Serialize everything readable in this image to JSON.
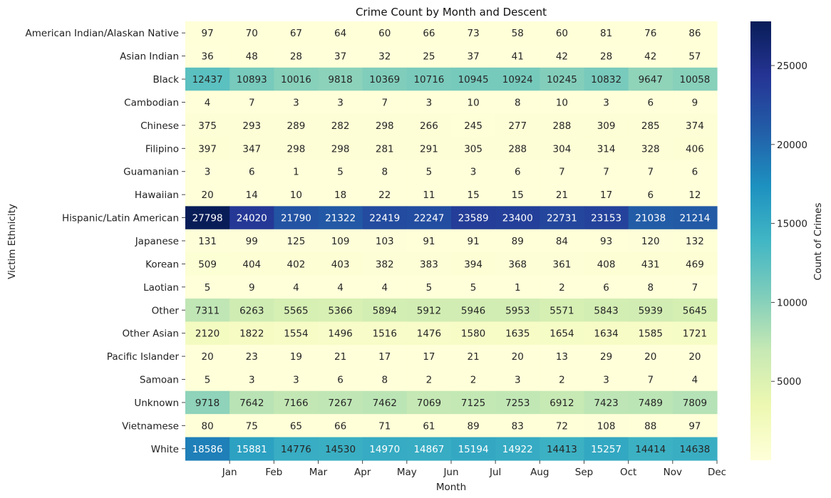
{
  "chart_data": {
    "type": "heatmap",
    "title": "Crime Count by Month and Descent",
    "xlabel": "Month",
    "ylabel": "Victim Ethnicity",
    "colorbar_label": "Count of Crimes",
    "colorbar_ticks": [
      5000,
      10000,
      15000,
      20000,
      25000
    ],
    "color_range": [
      1,
      27798
    ],
    "colormap": [
      "#ffffd9",
      "#edf8b1",
      "#c7e9b4",
      "#7fcdbb",
      "#41b6c4",
      "#1d91c0",
      "#225ea8",
      "#253494",
      "#081d58"
    ],
    "months": [
      "Jan",
      "Feb",
      "Mar",
      "Apr",
      "May",
      "Jun",
      "Jul",
      "Aug",
      "Sep",
      "Oct",
      "Nov",
      "Dec"
    ],
    "ethnicities": [
      "American Indian/Alaskan Native",
      "Asian Indian",
      "Black",
      "Cambodian",
      "Chinese",
      "Filipino",
      "Guamanian",
      "Hawaiian",
      "Hispanic/Latin American",
      "Japanese",
      "Korean",
      "Laotian",
      "Other",
      "Other Asian",
      "Pacific Islander",
      "Samoan",
      "Unknown",
      "Vietnamese",
      "White"
    ],
    "values": [
      [
        97,
        70,
        67,
        64,
        60,
        66,
        73,
        58,
        60,
        81,
        76,
        86
      ],
      [
        36,
        48,
        28,
        37,
        32,
        25,
        37,
        41,
        42,
        28,
        42,
        57
      ],
      [
        12437,
        10893,
        10016,
        9818,
        10369,
        10716,
        10945,
        10924,
        10245,
        10832,
        9647,
        10058
      ],
      [
        4,
        7,
        3,
        3,
        7,
        3,
        10,
        8,
        10,
        3,
        6,
        9
      ],
      [
        375,
        293,
        289,
        282,
        298,
        266,
        245,
        277,
        288,
        309,
        285,
        374
      ],
      [
        397,
        347,
        298,
        298,
        281,
        291,
        305,
        288,
        304,
        314,
        328,
        406
      ],
      [
        3,
        6,
        1,
        5,
        8,
        5,
        3,
        6,
        7,
        7,
        7,
        6
      ],
      [
        20,
        14,
        10,
        18,
        22,
        11,
        15,
        15,
        21,
        17,
        6,
        12
      ],
      [
        27798,
        24020,
        21790,
        21322,
        22419,
        22247,
        23589,
        23400,
        22731,
        23153,
        21038,
        21214
      ],
      [
        131,
        99,
        125,
        109,
        103,
        91,
        91,
        89,
        84,
        93,
        120,
        132
      ],
      [
        509,
        404,
        402,
        403,
        382,
        383,
        394,
        368,
        361,
        408,
        431,
        469
      ],
      [
        5,
        9,
        4,
        4,
        4,
        5,
        5,
        1,
        2,
        6,
        8,
        7
      ],
      [
        7311,
        6263,
        5565,
        5366,
        5894,
        5912,
        5946,
        5953,
        5571,
        5843,
        5939,
        5645
      ],
      [
        2120,
        1822,
        1554,
        1496,
        1516,
        1476,
        1580,
        1635,
        1654,
        1634,
        1585,
        1721
      ],
      [
        20,
        23,
        19,
        21,
        17,
        17,
        21,
        20,
        13,
        29,
        20,
        20
      ],
      [
        5,
        3,
        3,
        6,
        8,
        2,
        2,
        3,
        2,
        3,
        7,
        4
      ],
      [
        9718,
        7642,
        7166,
        7267,
        7462,
        7069,
        7125,
        7253,
        6912,
        7423,
        7489,
        7809
      ],
      [
        80,
        75,
        65,
        66,
        71,
        61,
        89,
        83,
        72,
        108,
        88,
        97
      ],
      [
        18586,
        15881,
        14776,
        14530,
        14970,
        14867,
        15194,
        14922,
        14413,
        15257,
        14414,
        14638
      ]
    ]
  }
}
